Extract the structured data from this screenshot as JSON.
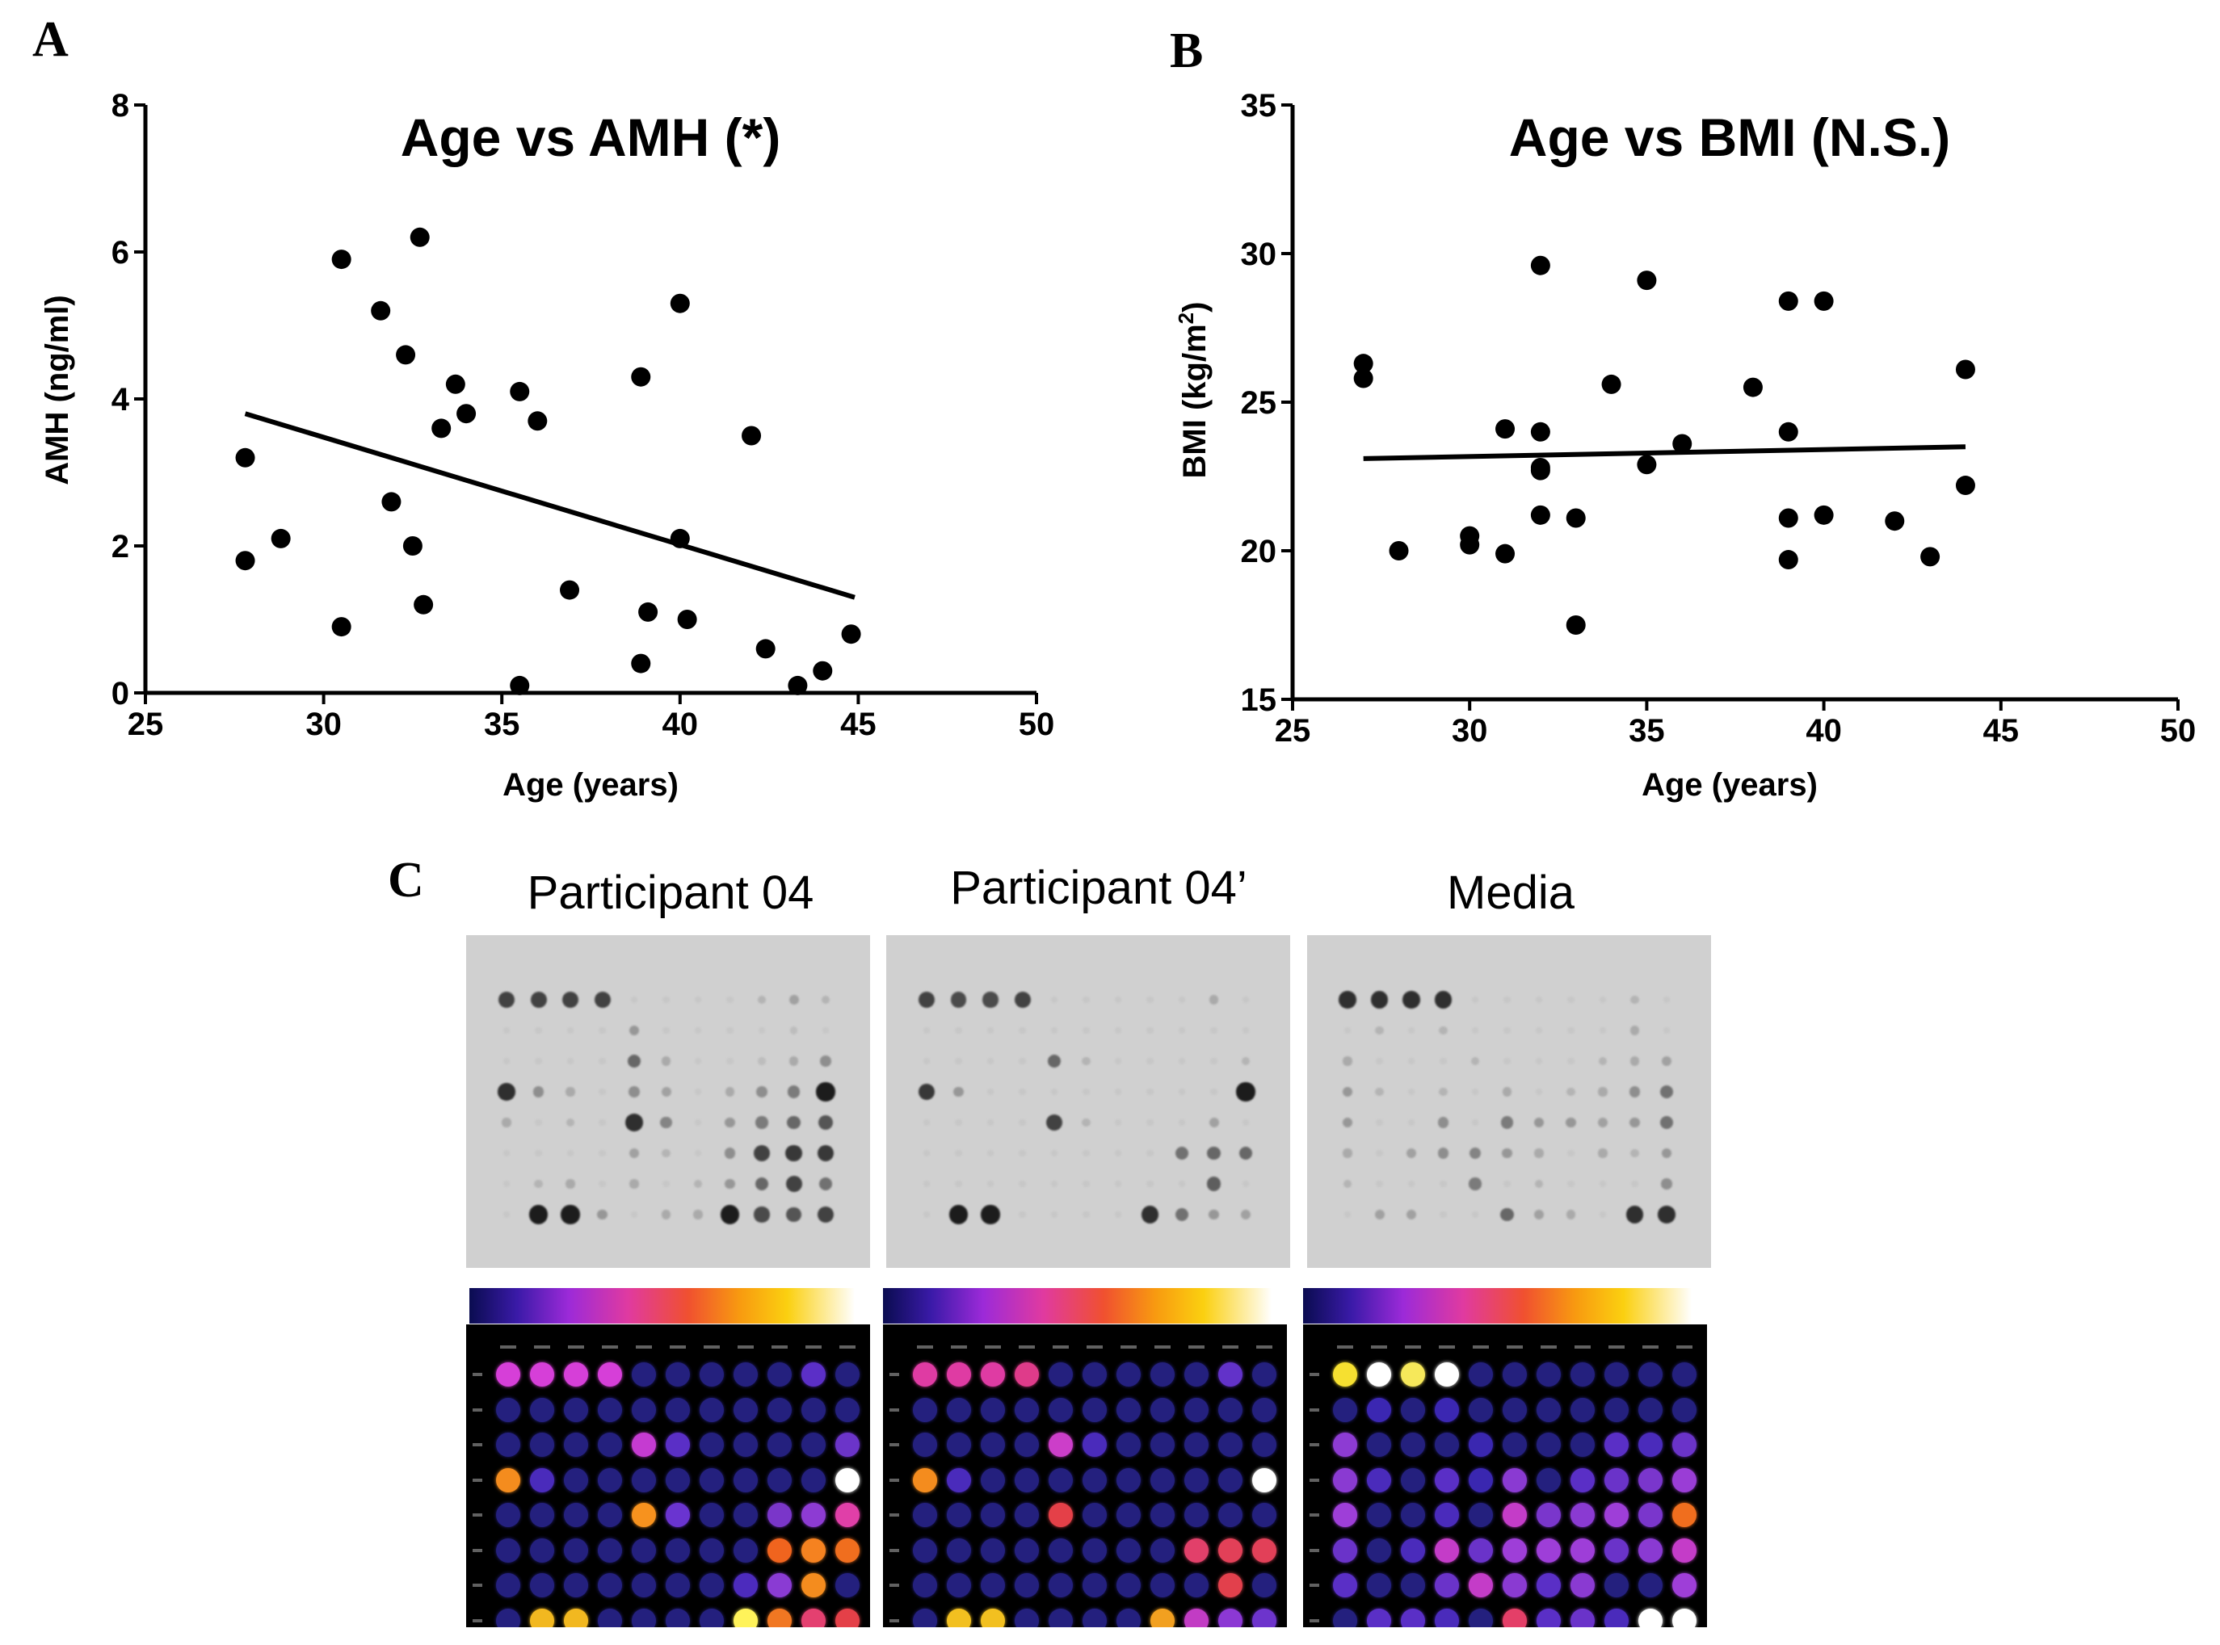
{
  "panels": {
    "a": "A",
    "b": "B",
    "c": "C"
  },
  "chart_data": [
    {
      "type": "scatter",
      "title": "Age vs AMH (*)",
      "xlabel": "Age (years)",
      "ylabel": "AMH (ng/ml)",
      "xlim": [
        25,
        50
      ],
      "ylim": [
        0,
        8
      ],
      "xticks": [
        "25",
        "30",
        "35",
        "40",
        "45",
        "50"
      ],
      "yticks": [
        "0",
        "2",
        "4",
        "6",
        "8"
      ],
      "points": [
        [
          27.8,
          3.2
        ],
        [
          27.8,
          1.8
        ],
        [
          28.8,
          2.1
        ],
        [
          30.5,
          5.9
        ],
        [
          30.5,
          0.9
        ],
        [
          31.6,
          5.2
        ],
        [
          31.9,
          2.6
        ],
        [
          32.3,
          4.6
        ],
        [
          32.5,
          2.0
        ],
        [
          32.7,
          6.2
        ],
        [
          32.8,
          1.2
        ],
        [
          33.3,
          3.6
        ],
        [
          33.7,
          4.2
        ],
        [
          34.0,
          3.8
        ],
        [
          35.5,
          4.1
        ],
        [
          35.5,
          0.1
        ],
        [
          36.0,
          3.7
        ],
        [
          36.9,
          1.4
        ],
        [
          38.9,
          4.3
        ],
        [
          38.9,
          0.4
        ],
        [
          39.1,
          1.1
        ],
        [
          40.0,
          5.3
        ],
        [
          40.0,
          2.1
        ],
        [
          40.2,
          1.0
        ],
        [
          42.0,
          3.5
        ],
        [
          42.4,
          0.6
        ],
        [
          43.3,
          0.1
        ],
        [
          44.0,
          0.3
        ],
        [
          44.8,
          0.8
        ]
      ],
      "fit": [
        [
          27.8,
          3.8
        ],
        [
          44.9,
          1.3
        ]
      ]
    },
    {
      "type": "scatter",
      "title": "Age vs BMI (N.S.)",
      "xlabel": "Age (years)",
      "ylabel_main": "BMI (kg/m",
      "ylabel_sup": "2",
      "ylabel_end": ")",
      "xlim": [
        25,
        50
      ],
      "ylim": [
        15,
        35
      ],
      "xticks": [
        "25",
        "30",
        "35",
        "40",
        "45",
        "50"
      ],
      "yticks": [
        "15",
        "20",
        "25",
        "30",
        "35"
      ],
      "points": [
        [
          27,
          26.3
        ],
        [
          27,
          25.8
        ],
        [
          28,
          20.0
        ],
        [
          30,
          20.5
        ],
        [
          30,
          20.2
        ],
        [
          31,
          24.1
        ],
        [
          31,
          19.9
        ],
        [
          32,
          29.6
        ],
        [
          32,
          24.0
        ],
        [
          32,
          22.8
        ],
        [
          32,
          22.7
        ],
        [
          32,
          21.2
        ],
        [
          33,
          21.1
        ],
        [
          33,
          17.5
        ],
        [
          34,
          25.6
        ],
        [
          35,
          29.1
        ],
        [
          35,
          22.9
        ],
        [
          36,
          23.6
        ],
        [
          38,
          25.5
        ],
        [
          39,
          28.4
        ],
        [
          39,
          24.0
        ],
        [
          39,
          21.1
        ],
        [
          39,
          19.7
        ],
        [
          40,
          28.4
        ],
        [
          40,
          21.2
        ],
        [
          42,
          21.0
        ],
        [
          43,
          19.8
        ],
        [
          44,
          26.1
        ],
        [
          44,
          22.2
        ]
      ],
      "fit": [
        [
          27,
          23.1
        ],
        [
          44,
          23.5
        ]
      ]
    }
  ],
  "blots": [
    {
      "label": "Participant 04",
      "photo_spots": [
        [
          1,
          1,
          0.75
        ],
        [
          1,
          2,
          0.75
        ],
        [
          1,
          3,
          0.75
        ],
        [
          1,
          4,
          0.75
        ],
        [
          1,
          9,
          0.15
        ],
        [
          1,
          10,
          0.25
        ],
        [
          1,
          11,
          0.15
        ],
        [
          2,
          5,
          0.3
        ],
        [
          2,
          10,
          0.1
        ],
        [
          3,
          5,
          0.55
        ],
        [
          3,
          6,
          0.2
        ],
        [
          3,
          9,
          0.1
        ],
        [
          3,
          10,
          0.2
        ],
        [
          3,
          11,
          0.35
        ],
        [
          4,
          1,
          0.85
        ],
        [
          4,
          2,
          0.35
        ],
        [
          4,
          3,
          0.2
        ],
        [
          4,
          5,
          0.35
        ],
        [
          4,
          6,
          0.25
        ],
        [
          4,
          8,
          0.2
        ],
        [
          4,
          9,
          0.35
        ],
        [
          4,
          10,
          0.45
        ],
        [
          4,
          11,
          0.95
        ],
        [
          5,
          1,
          0.2
        ],
        [
          5,
          3,
          0.15
        ],
        [
          5,
          5,
          0.85
        ],
        [
          5,
          6,
          0.4
        ],
        [
          5,
          8,
          0.3
        ],
        [
          5,
          9,
          0.45
        ],
        [
          5,
          10,
          0.55
        ],
        [
          5,
          11,
          0.65
        ],
        [
          6,
          5,
          0.25
        ],
        [
          6,
          6,
          0.15
        ],
        [
          6,
          8,
          0.35
        ],
        [
          6,
          9,
          0.75
        ],
        [
          6,
          10,
          0.8
        ],
        [
          6,
          11,
          0.8
        ],
        [
          7,
          2,
          0.15
        ],
        [
          7,
          3,
          0.2
        ],
        [
          7,
          5,
          0.2
        ],
        [
          7,
          7,
          0.15
        ],
        [
          7,
          8,
          0.3
        ],
        [
          7,
          9,
          0.55
        ],
        [
          7,
          10,
          0.75
        ],
        [
          7,
          11,
          0.5
        ],
        [
          8,
          2,
          0.95
        ],
        [
          8,
          3,
          0.95
        ],
        [
          8,
          4,
          0.3
        ],
        [
          8,
          6,
          0.2
        ],
        [
          8,
          7,
          0.2
        ],
        [
          8,
          8,
          0.95
        ],
        [
          8,
          9,
          0.7
        ],
        [
          8,
          10,
          0.65
        ],
        [
          8,
          11,
          0.75
        ]
      ],
      "heat_spots": [
        [
          1,
          1,
          "#d63fd8"
        ],
        [
          1,
          2,
          "#d63fd8"
        ],
        [
          1,
          3,
          "#d63fd8"
        ],
        [
          1,
          4,
          "#d63fd8"
        ],
        [
          1,
          10,
          "#5b2fc7"
        ],
        [
          3,
          5,
          "#c53bd1"
        ],
        [
          3,
          6,
          "#5a2fc6"
        ],
        [
          3,
          11,
          "#6b34c9"
        ],
        [
          4,
          1,
          "#f48c1e"
        ],
        [
          4,
          2,
          "#4a2bbb"
        ],
        [
          4,
          11,
          "#ffffff"
        ],
        [
          5,
          5,
          "#f7921e"
        ],
        [
          5,
          6,
          "#6a34d0"
        ],
        [
          5,
          9,
          "#7a36c9"
        ],
        [
          5,
          10,
          "#8d3bd3"
        ],
        [
          5,
          11,
          "#e03fa8"
        ],
        [
          6,
          9,
          "#f0641e"
        ],
        [
          6,
          10,
          "#f58220"
        ],
        [
          6,
          11,
          "#f06e1e"
        ],
        [
          7,
          8,
          "#4c2bbd"
        ],
        [
          7,
          9,
          "#8a3bd3"
        ],
        [
          7,
          10,
          "#f48c1e"
        ],
        [
          8,
          2,
          "#f2b820"
        ],
        [
          8,
          3,
          "#f2b820"
        ],
        [
          8,
          8,
          "#fff35a"
        ],
        [
          8,
          9,
          "#f17722"
        ],
        [
          8,
          10,
          "#e44070"
        ],
        [
          8,
          11,
          "#e44048"
        ]
      ]
    },
    {
      "label": "Participant 04’",
      "photo_spots": [
        [
          1,
          1,
          0.75
        ],
        [
          1,
          2,
          0.7
        ],
        [
          1,
          3,
          0.7
        ],
        [
          1,
          4,
          0.75
        ],
        [
          1,
          10,
          0.2
        ],
        [
          3,
          5,
          0.55
        ],
        [
          3,
          6,
          0.15
        ],
        [
          3,
          11,
          0.15
        ],
        [
          4,
          1,
          0.8
        ],
        [
          4,
          2,
          0.3
        ],
        [
          4,
          11,
          0.95
        ],
        [
          5,
          5,
          0.75
        ],
        [
          5,
          6,
          0.15
        ],
        [
          5,
          10,
          0.25
        ],
        [
          6,
          9,
          0.5
        ],
        [
          6,
          10,
          0.55
        ],
        [
          6,
          11,
          0.55
        ],
        [
          7,
          10,
          0.6
        ],
        [
          8,
          2,
          0.95
        ],
        [
          8,
          3,
          0.95
        ],
        [
          8,
          8,
          0.85
        ],
        [
          8,
          9,
          0.5
        ],
        [
          8,
          10,
          0.3
        ],
        [
          8,
          11,
          0.25
        ]
      ],
      "heat_spots": [
        [
          1,
          1,
          "#df3ba3"
        ],
        [
          1,
          2,
          "#df3ba3"
        ],
        [
          1,
          3,
          "#df3ba3"
        ],
        [
          1,
          4,
          "#df3b8a"
        ],
        [
          1,
          10,
          "#6232c9"
        ],
        [
          3,
          5,
          "#cc3ec9"
        ],
        [
          3,
          6,
          "#4a2bbb"
        ],
        [
          4,
          1,
          "#f48c1e"
        ],
        [
          4,
          2,
          "#4a2bbb"
        ],
        [
          4,
          11,
          "#ffffff"
        ],
        [
          5,
          5,
          "#e44048"
        ],
        [
          6,
          9,
          "#e2406a"
        ],
        [
          6,
          10,
          "#e24058"
        ],
        [
          6,
          11,
          "#e24058"
        ],
        [
          7,
          10,
          "#e2404c"
        ],
        [
          8,
          2,
          "#f2c020"
        ],
        [
          8,
          3,
          "#f2c020"
        ],
        [
          8,
          8,
          "#f2a020"
        ],
        [
          8,
          9,
          "#c23cc4"
        ],
        [
          8,
          10,
          "#8c38d4"
        ],
        [
          8,
          11,
          "#6d34cc"
        ]
      ]
    },
    {
      "label": "Media",
      "photo_spots": [
        [
          1,
          1,
          0.85
        ],
        [
          1,
          2,
          0.85
        ],
        [
          1,
          3,
          0.85
        ],
        [
          1,
          4,
          0.85
        ],
        [
          1,
          10,
          0.15
        ],
        [
          2,
          2,
          0.15
        ],
        [
          2,
          4,
          0.15
        ],
        [
          2,
          10,
          0.2
        ],
        [
          3,
          1,
          0.2
        ],
        [
          3,
          5,
          0.15
        ],
        [
          3,
          9,
          0.15
        ],
        [
          3,
          10,
          0.2
        ],
        [
          3,
          11,
          0.25
        ],
        [
          4,
          1,
          0.3
        ],
        [
          4,
          2,
          0.15
        ],
        [
          4,
          4,
          0.15
        ],
        [
          4,
          6,
          0.2
        ],
        [
          4,
          8,
          0.15
        ],
        [
          4,
          9,
          0.2
        ],
        [
          4,
          10,
          0.35
        ],
        [
          4,
          11,
          0.5
        ],
        [
          5,
          1,
          0.3
        ],
        [
          5,
          4,
          0.35
        ],
        [
          5,
          6,
          0.45
        ],
        [
          5,
          7,
          0.3
        ],
        [
          5,
          8,
          0.3
        ],
        [
          5,
          9,
          0.25
        ],
        [
          5,
          10,
          0.3
        ],
        [
          5,
          11,
          0.5
        ],
        [
          6,
          1,
          0.2
        ],
        [
          6,
          3,
          0.25
        ],
        [
          6,
          4,
          0.35
        ],
        [
          6,
          5,
          0.4
        ],
        [
          6,
          6,
          0.3
        ],
        [
          6,
          7,
          0.2
        ],
        [
          6,
          9,
          0.2
        ],
        [
          6,
          10,
          0.15
        ],
        [
          6,
          11,
          0.3
        ],
        [
          7,
          1,
          0.15
        ],
        [
          7,
          5,
          0.45
        ],
        [
          7,
          7,
          0.15
        ],
        [
          7,
          11,
          0.35
        ],
        [
          8,
          2,
          0.25
        ],
        [
          8,
          3,
          0.25
        ],
        [
          8,
          6,
          0.55
        ],
        [
          8,
          7,
          0.25
        ],
        [
          8,
          8,
          0.2
        ],
        [
          8,
          10,
          0.85
        ],
        [
          8,
          11,
          0.85
        ]
      ],
      "heat_spots": [
        [
          1,
          1,
          "#f6e030"
        ],
        [
          1,
          2,
          "#ffffff"
        ],
        [
          1,
          3,
          "#f6e85a"
        ],
        [
          1,
          4,
          "#ffffff"
        ],
        [
          2,
          2,
          "#3b27b2"
        ],
        [
          2,
          4,
          "#3b27b2"
        ],
        [
          3,
          1,
          "#8d3bd3"
        ],
        [
          3,
          5,
          "#3a27b0"
        ],
        [
          3,
          9,
          "#5a2fc6"
        ],
        [
          3,
          10,
          "#4a2bbb"
        ],
        [
          3,
          11,
          "#6a33c9"
        ],
        [
          4,
          1,
          "#8a3ad2"
        ],
        [
          4,
          2,
          "#4a2bbb"
        ],
        [
          4,
          4,
          "#5a2fc6"
        ],
        [
          4,
          5,
          "#3a27b0"
        ],
        [
          4,
          6,
          "#8a3ad2"
        ],
        [
          4,
          8,
          "#5a2fc6"
        ],
        [
          4,
          9,
          "#6a33c9"
        ],
        [
          4,
          10,
          "#7a36cc"
        ],
        [
          4,
          11,
          "#9a3dd6"
        ],
        [
          5,
          1,
          "#9e3ed8"
        ],
        [
          5,
          4,
          "#4a2bbb"
        ],
        [
          5,
          6,
          "#c43cc8"
        ],
        [
          5,
          7,
          "#7a36cc"
        ],
        [
          5,
          8,
          "#8a3ad2"
        ],
        [
          5,
          9,
          "#9e3ed8"
        ],
        [
          5,
          10,
          "#7a36cc"
        ],
        [
          5,
          11,
          "#f06e1e"
        ],
        [
          6,
          1,
          "#6a33c9"
        ],
        [
          6,
          3,
          "#4a2bbb"
        ],
        [
          6,
          4,
          "#c43cc8"
        ],
        [
          6,
          5,
          "#6a33c9"
        ],
        [
          6,
          6,
          "#9e3ed8"
        ],
        [
          6,
          7,
          "#9e3ed8"
        ],
        [
          6,
          8,
          "#9e3ed8"
        ],
        [
          6,
          9,
          "#6a33c9"
        ],
        [
          6,
          10,
          "#8a3ad2"
        ],
        [
          6,
          11,
          "#c43cc8"
        ],
        [
          7,
          1,
          "#5a2fc6"
        ],
        [
          7,
          4,
          "#6a33c9"
        ],
        [
          7,
          5,
          "#c43cc8"
        ],
        [
          7,
          6,
          "#8a3ad2"
        ],
        [
          7,
          7,
          "#5a2fc6"
        ],
        [
          7,
          8,
          "#8a3ad2"
        ],
        [
          7,
          11,
          "#9e3ed8"
        ],
        [
          8,
          2,
          "#5a2fc6"
        ],
        [
          8,
          3,
          "#5a2fc6"
        ],
        [
          8,
          4,
          "#4a2bbb"
        ],
        [
          8,
          6,
          "#e43f68"
        ],
        [
          8,
          7,
          "#5a2fc6"
        ],
        [
          8,
          8,
          "#6a33c9"
        ],
        [
          8,
          9,
          "#4a2bbb"
        ],
        [
          8,
          10,
          "#ffffff"
        ],
        [
          8,
          11,
          "#ffffff"
        ]
      ]
    }
  ],
  "colors": {
    "heat_background": "#000000",
    "heat_base_spot": "#24207e",
    "photo_background": "#d0d0d0",
    "photo_spot": "#202020"
  }
}
